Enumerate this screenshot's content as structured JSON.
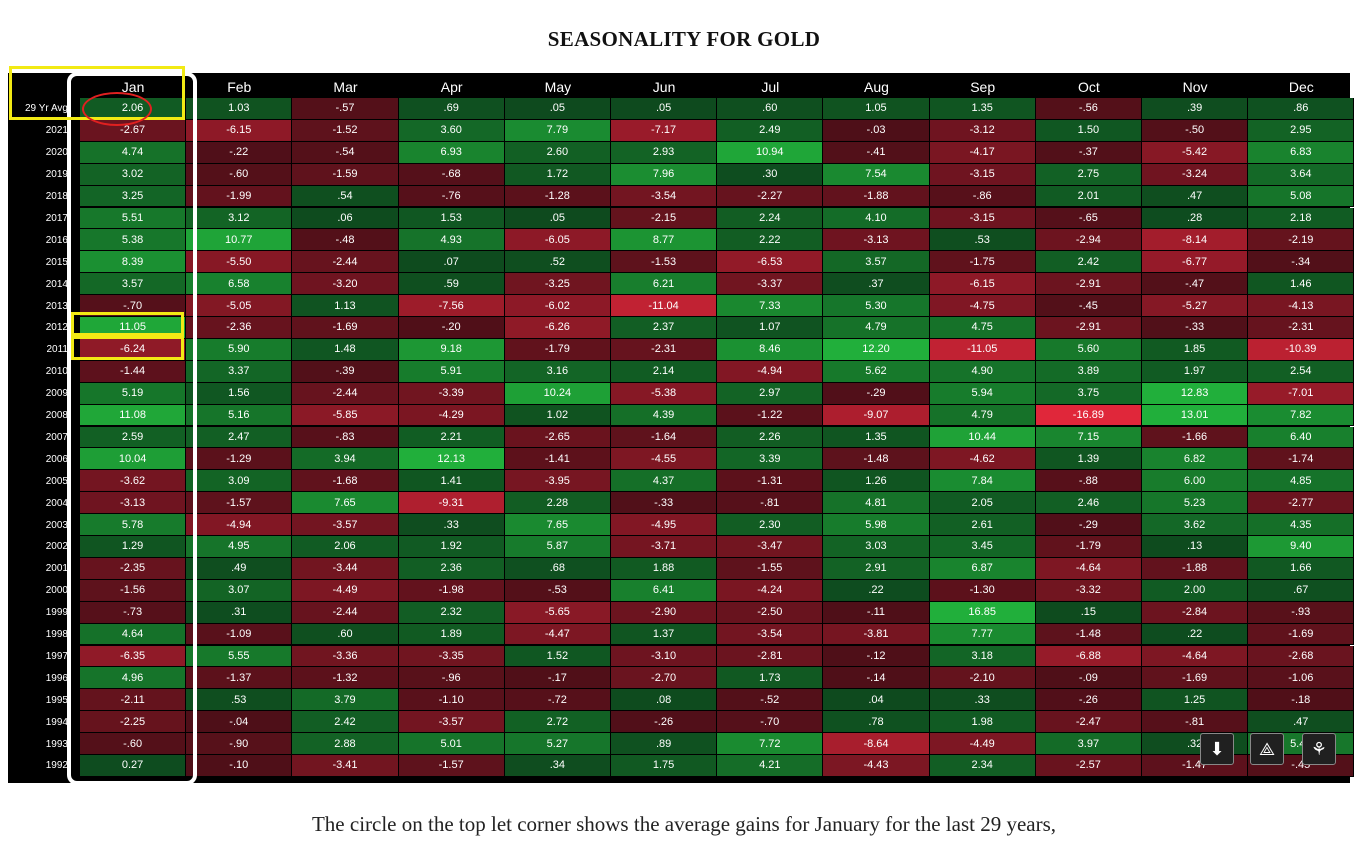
{
  "title": "SEASONALITY FOR GOLD",
  "caption": "The circle on the top let corner shows the average gains for January for the last 29 years,",
  "chart_data": {
    "type": "heatmap",
    "title": "SEASONALITY FOR GOLD",
    "columns": [
      "Jan",
      "Feb",
      "Mar",
      "Apr",
      "May",
      "Jun",
      "Jul",
      "Aug",
      "Sep",
      "Oct",
      "Nov",
      "Dec"
    ],
    "rows": [
      {
        "label": "29 Yr Avg",
        "values": [
          "2.06",
          "1.03",
          "-.57",
          ".69",
          ".05",
          ".05",
          ".60",
          "1.05",
          "1.35",
          "-.56",
          ".39",
          ".86"
        ]
      },
      {
        "label": "2021",
        "values": [
          "-2.67",
          "-6.15",
          "-1.52",
          "3.60",
          "7.79",
          "-7.17",
          "2.49",
          "-.03",
          "-3.12",
          "1.50",
          "-.50",
          "2.95"
        ]
      },
      {
        "label": "2020",
        "values": [
          "4.74",
          "-.22",
          "-.54",
          "6.93",
          "2.60",
          "2.93",
          "10.94",
          "-.41",
          "-4.17",
          "-.37",
          "-5.42",
          "6.83"
        ]
      },
      {
        "label": "2019",
        "values": [
          "3.02",
          "-.60",
          "-1.59",
          "-.68",
          "1.72",
          "7.96",
          ".30",
          "7.54",
          "-3.15",
          "2.75",
          "-3.24",
          "3.64"
        ]
      },
      {
        "label": "2018",
        "values": [
          "3.25",
          "-1.99",
          ".54",
          "-.76",
          "-1.28",
          "-3.54",
          "-2.27",
          "-1.88",
          "-.86",
          "2.01",
          ".47",
          "5.08"
        ]
      },
      {
        "label": "2017",
        "values": [
          "5.51",
          "3.12",
          ".06",
          "1.53",
          ".05",
          "-2.15",
          "2.24",
          "4.10",
          "-3.15",
          "-.65",
          ".28",
          "2.18"
        ]
      },
      {
        "label": "2016",
        "values": [
          "5.38",
          "10.77",
          "-.48",
          "4.93",
          "-6.05",
          "8.77",
          "2.22",
          "-3.13",
          ".53",
          "-2.94",
          "-8.14",
          "-2.19"
        ]
      },
      {
        "label": "2015",
        "values": [
          "8.39",
          "-5.50",
          "-2.44",
          ".07",
          ".52",
          "-1.53",
          "-6.53",
          "3.57",
          "-1.75",
          "2.42",
          "-6.77",
          "-.34"
        ]
      },
      {
        "label": "2014",
        "values": [
          "3.57",
          "6.58",
          "-3.20",
          ".59",
          "-3.25",
          "6.21",
          "-3.37",
          ".37",
          "-6.15",
          "-2.91",
          "-.47",
          "1.46"
        ]
      },
      {
        "label": "2013",
        "values": [
          "-.70",
          "-5.05",
          "1.13",
          "-7.56",
          "-6.02",
          "-11.04",
          "7.33",
          "5.30",
          "-4.75",
          "-.45",
          "-5.27",
          "-4.13"
        ]
      },
      {
        "label": "2012",
        "values": [
          "11.05",
          "-2.36",
          "-1.69",
          "-.20",
          "-6.26",
          "2.37",
          "1.07",
          "4.79",
          "4.75",
          "-2.91",
          "-.33",
          "-2.31"
        ]
      },
      {
        "label": "2011",
        "values": [
          "-6.24",
          "5.90",
          "1.48",
          "9.18",
          "-1.79",
          "-2.31",
          "8.46",
          "12.20",
          "-11.05",
          "5.60",
          "1.85",
          "-10.39"
        ]
      },
      {
        "label": "2010",
        "values": [
          "-1.44",
          "3.37",
          "-.39",
          "5.91",
          "3.16",
          "2.14",
          "-4.94",
          "5.62",
          "4.90",
          "3.89",
          "1.97",
          "2.54"
        ]
      },
      {
        "label": "2009",
        "values": [
          "5.19",
          "1.56",
          "-2.44",
          "-3.39",
          "10.24",
          "-5.38",
          "2.97",
          "-.29",
          "5.94",
          "3.75",
          "12.83",
          "-7.01"
        ]
      },
      {
        "label": "2008",
        "values": [
          "11.08",
          "5.16",
          "-5.85",
          "-4.29",
          "1.02",
          "4.39",
          "-1.22",
          "-9.07",
          "4.79",
          "-16.89",
          "13.01",
          "7.82"
        ]
      },
      {
        "label": "2007",
        "values": [
          "2.59",
          "2.47",
          "-.83",
          "2.21",
          "-2.65",
          "-1.64",
          "2.26",
          "1.35",
          "10.44",
          "7.15",
          "-1.66",
          "6.40"
        ]
      },
      {
        "label": "2006",
        "values": [
          "10.04",
          "-1.29",
          "3.94",
          "12.13",
          "-1.41",
          "-4.55",
          "3.39",
          "-1.48",
          "-4.62",
          "1.39",
          "6.82",
          "-1.74"
        ]
      },
      {
        "label": "2005",
        "values": [
          "-3.62",
          "3.09",
          "-1.68",
          "1.41",
          "-3.95",
          "4.37",
          "-1.31",
          "1.26",
          "7.84",
          "-.88",
          "6.00",
          "4.85"
        ]
      },
      {
        "label": "2004",
        "values": [
          "-3.13",
          "-1.57",
          "7.65",
          "-9.31",
          "2.28",
          "-.33",
          "-.81",
          "4.81",
          "2.05",
          "2.46",
          "5.23",
          "-2.77"
        ]
      },
      {
        "label": "2003",
        "values": [
          "5.78",
          "-4.94",
          "-3.57",
          ".33",
          "7.65",
          "-4.95",
          "2.30",
          "5.98",
          "2.61",
          "-.29",
          "3.62",
          "4.35"
        ]
      },
      {
        "label": "2002",
        "values": [
          "1.29",
          "4.95",
          "2.06",
          "1.92",
          "5.87",
          "-3.71",
          "-3.47",
          "3.03",
          "3.45",
          "-1.79",
          ".13",
          "9.40"
        ]
      },
      {
        "label": "2001",
        "values": [
          "-2.35",
          ".49",
          "-3.44",
          "2.36",
          ".68",
          "1.88",
          "-1.55",
          "2.91",
          "6.87",
          "-4.64",
          "-1.88",
          "1.66"
        ]
      },
      {
        "label": "2000",
        "values": [
          "-1.56",
          "3.07",
          "-4.49",
          "-1.98",
          "-.53",
          "6.41",
          "-4.24",
          ".22",
          "-1.30",
          "-3.32",
          "2.00",
          ".67"
        ]
      },
      {
        "label": "1999",
        "values": [
          "-.73",
          ".31",
          "-2.44",
          "2.32",
          "-5.65",
          "-2.90",
          "-2.50",
          "-.11",
          "16.85",
          ".15",
          "-2.84",
          "-.93"
        ]
      },
      {
        "label": "1998",
        "values": [
          "4.64",
          "-1.09",
          ".60",
          "1.89",
          "-4.47",
          "1.37",
          "-3.54",
          "-3.81",
          "7.77",
          "-1.48",
          ".22",
          "-1.69"
        ]
      },
      {
        "label": "1997",
        "values": [
          "-6.35",
          "5.55",
          "-3.36",
          "-3.35",
          "1.52",
          "-3.10",
          "-2.81",
          "-.12",
          "3.18",
          "-6.88",
          "-4.64",
          "-2.68"
        ]
      },
      {
        "label": "1996",
        "values": [
          "4.96",
          "-1.37",
          "-1.32",
          "-.96",
          "-.17",
          "-2.70",
          "1.73",
          "-.14",
          "-2.10",
          "-.09",
          "-1.69",
          "-1.06"
        ]
      },
      {
        "label": "1995",
        "values": [
          "-2.11",
          ".53",
          "3.79",
          "-1.10",
          "-.72",
          ".08",
          "-.52",
          ".04",
          ".33",
          "-.26",
          "1.25",
          "-.18"
        ]
      },
      {
        "label": "1994",
        "values": [
          "-2.25",
          "-.04",
          "2.42",
          "-3.57",
          "2.72",
          "-.26",
          "-.70",
          ".78",
          "1.98",
          "-2.47",
          "-.81",
          ".47"
        ]
      },
      {
        "label": "1993",
        "values": [
          "-.60",
          "-.90",
          "2.88",
          "5.01",
          "5.27",
          ".89",
          "7.72",
          "-8.64",
          "-4.49",
          "3.97",
          ".32",
          "5.40"
        ]
      },
      {
        "label": "1992",
        "values": [
          "0.27",
          "-.10",
          "-3.41",
          "-1.57",
          ".34",
          "1.75",
          "4.21",
          "-4.43",
          "2.34",
          "-2.57",
          "-1.47",
          "-.45"
        ]
      }
    ],
    "colors": {
      "pos_dark": "#0e4a1e",
      "pos_bright": "#22b43c",
      "neg_dark": "#4e0f18",
      "neg_bright": "#e8283c"
    }
  },
  "toolbar": {
    "buttons": [
      {
        "name": "download-icon",
        "glyph": "⬇"
      },
      {
        "name": "add-to-drive-icon",
        "glyph": "⟁"
      },
      {
        "name": "extension-icon",
        "glyph": "⚘"
      }
    ]
  }
}
